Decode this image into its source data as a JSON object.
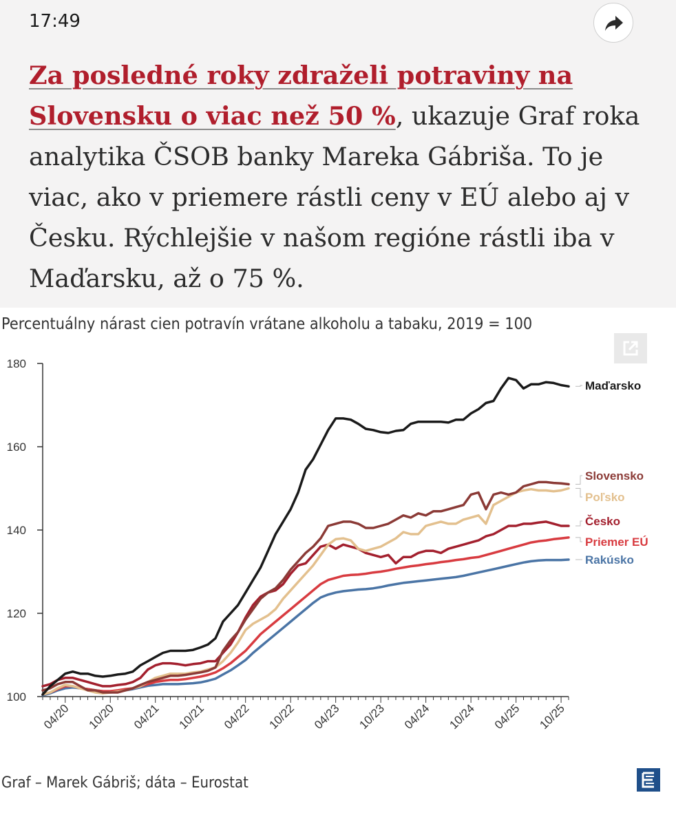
{
  "status": {
    "time": "17:49"
  },
  "article": {
    "link_text": "Za posledné roky zdraželi potraviny na Slovensku o viac než 50 %",
    "body_text": ", ukazuje Graf roka analytika ČSOB banky Mareka Gábriša. To je viac, ako v priemere rástli ceny v EÚ alebo aj v Česku. Rýchlejšie v našom regióne rástli iba v Maďarsku, až o 75 %."
  },
  "icons": {
    "share": "share-arrow-icon",
    "expand": "expand-icon",
    "logo": "e-logo-icon"
  },
  "chart_data": {
    "type": "line",
    "title": "Percentuálny nárast cien potravín vrátane alkoholu a tabaku, 2019 = 100",
    "source": "Graf – Marek Gábriš; dáta – Eurostat",
    "xlabel": "",
    "ylabel": "",
    "ylim": [
      100,
      180
    ],
    "yticks": [
      100,
      120,
      140,
      160,
      180
    ],
    "x_ticks": [
      "04/20",
      "10/20",
      "04/21",
      "10/21",
      "04/22",
      "10/22",
      "04/23",
      "10/23",
      "04/24",
      "10/24",
      "04/25",
      "10/25"
    ],
    "x": [
      "01/20",
      "02/20",
      "03/20",
      "04/20",
      "05/20",
      "06/20",
      "07/20",
      "08/20",
      "09/20",
      "10/20",
      "11/20",
      "12/20",
      "01/21",
      "02/21",
      "03/21",
      "04/21",
      "05/21",
      "06/21",
      "07/21",
      "08/21",
      "09/21",
      "10/21",
      "11/21",
      "12/21",
      "01/22",
      "02/22",
      "03/22",
      "04/22",
      "05/22",
      "06/22",
      "07/22",
      "08/22",
      "09/22",
      "10/22",
      "11/22",
      "12/22",
      "01/23",
      "02/23",
      "03/23",
      "04/23",
      "05/23",
      "06/23",
      "07/23",
      "08/23",
      "09/23",
      "10/23",
      "11/23",
      "12/23",
      "01/24",
      "02/24",
      "03/24",
      "04/24",
      "05/24",
      "06/24",
      "07/24",
      "08/24",
      "09/24",
      "10/24",
      "11/24",
      "12/24",
      "01/25",
      "02/25",
      "03/25",
      "04/25",
      "05/25",
      "06/25",
      "07/25",
      "08/25",
      "09/25",
      "10/25",
      "11/25"
    ],
    "grid": false,
    "legend": "labels at right end of lines",
    "series": [
      {
        "name": "Maďarsko",
        "color": "#1a1a1a",
        "values": [
          100.5,
          102.5,
          104.0,
          105.5,
          106.0,
          105.5,
          105.5,
          105.0,
          104.8,
          105.0,
          105.3,
          105.5,
          106.0,
          107.5,
          108.5,
          109.5,
          110.5,
          111.0,
          111.0,
          111.0,
          111.2,
          111.8,
          112.5,
          114.0,
          118.0,
          120.0,
          122.0,
          125.0,
          128.0,
          131.0,
          135.0,
          139.0,
          142.0,
          145.0,
          149.0,
          154.5,
          157.0,
          160.5,
          164.0,
          166.8,
          166.8,
          166.5,
          165.5,
          164.3,
          164.0,
          163.5,
          163.3,
          163.8,
          164.0,
          165.5,
          166.0,
          166.0,
          166.0,
          166.0,
          165.8,
          166.5,
          166.5,
          168.0,
          169.0,
          170.5,
          171.0,
          174.0,
          176.5,
          176.0,
          174.0,
          175.0,
          175.0,
          175.5,
          175.3,
          174.8,
          174.5
        ]
      },
      {
        "name": "Slovensko",
        "color": "#8b3a36",
        "values": [
          101.5,
          102.0,
          103.0,
          103.5,
          103.5,
          102.5,
          101.5,
          101.5,
          101.0,
          101.0,
          101.0,
          101.5,
          102.0,
          102.8,
          103.5,
          104.0,
          104.5,
          105.0,
          105.0,
          105.2,
          105.5,
          105.8,
          106.2,
          107.0,
          111.0,
          113.5,
          115.5,
          118.5,
          121.0,
          123.5,
          125.0,
          126.0,
          128.0,
          130.5,
          132.5,
          134.5,
          136.0,
          138.0,
          141.0,
          141.5,
          142.0,
          142.0,
          141.5,
          140.5,
          140.5,
          141.0,
          141.5,
          142.5,
          143.5,
          143.0,
          144.0,
          143.5,
          144.5,
          144.5,
          145.0,
          145.5,
          146.0,
          148.5,
          149.0,
          145.0,
          148.5,
          149.0,
          148.5,
          149.0,
          150.5,
          151.0,
          151.5,
          151.5,
          151.3,
          151.2,
          151.0
        ]
      },
      {
        "name": "Poľsko",
        "color": "#e3c08e",
        "values": [
          100.5,
          101.0,
          102.0,
          102.8,
          102.5,
          102.0,
          101.5,
          101.0,
          100.8,
          101.0,
          101.2,
          101.5,
          102.0,
          102.5,
          103.5,
          104.5,
          105.0,
          105.5,
          105.5,
          105.5,
          105.8,
          106.0,
          106.5,
          107.0,
          108.5,
          110.5,
          113.0,
          116.0,
          117.5,
          118.5,
          119.5,
          121.0,
          123.5,
          125.5,
          127.5,
          129.5,
          131.5,
          134.0,
          136.5,
          137.8,
          138.0,
          137.5,
          135.5,
          135.0,
          135.5,
          136.0,
          137.0,
          138.0,
          139.5,
          139.0,
          139.0,
          141.0,
          141.5,
          142.0,
          141.5,
          141.5,
          142.5,
          143.0,
          143.5,
          141.5,
          146.0,
          147.0,
          148.0,
          149.0,
          149.5,
          149.8,
          149.5,
          149.5,
          149.3,
          149.5,
          150.0
        ]
      },
      {
        "name": "Česko",
        "color": "#a3202e",
        "values": [
          102.5,
          103.0,
          104.0,
          104.5,
          104.5,
          104.0,
          103.5,
          103.0,
          102.5,
          102.5,
          102.8,
          103.0,
          103.5,
          104.5,
          106.5,
          107.5,
          108.0,
          108.0,
          107.8,
          107.5,
          107.8,
          108.0,
          108.5,
          108.5,
          110.5,
          112.5,
          115.5,
          119.0,
          122.0,
          124.0,
          125.0,
          125.5,
          127.0,
          129.5,
          131.5,
          132.0,
          134.0,
          136.0,
          136.5,
          135.5,
          136.5,
          136.0,
          135.5,
          134.5,
          134.0,
          133.5,
          134.0,
          132.0,
          133.5,
          133.5,
          134.5,
          135.0,
          135.0,
          134.5,
          135.5,
          136.0,
          136.5,
          137.0,
          137.5,
          138.5,
          139.0,
          140.0,
          141.0,
          141.0,
          141.5,
          141.5,
          141.8,
          142.0,
          141.5,
          141.0,
          141.0
        ]
      },
      {
        "name": "Priemer EÚ",
        "color": "#d83b40",
        "values": [
          100.5,
          101.0,
          101.8,
          102.5,
          102.5,
          102.0,
          101.8,
          101.5,
          101.3,
          101.3,
          101.5,
          101.8,
          102.0,
          102.5,
          103.0,
          103.5,
          103.8,
          104.0,
          104.0,
          104.2,
          104.5,
          104.8,
          105.2,
          105.8,
          106.8,
          108.0,
          109.5,
          111.0,
          113.0,
          115.0,
          116.5,
          118.0,
          119.5,
          121.0,
          122.5,
          124.0,
          125.5,
          127.0,
          128.0,
          128.5,
          129.0,
          129.2,
          129.3,
          129.5,
          129.8,
          130.0,
          130.3,
          130.7,
          131.0,
          131.3,
          131.5,
          131.8,
          132.0,
          132.3,
          132.5,
          132.8,
          133.0,
          133.3,
          133.5,
          134.0,
          134.5,
          135.0,
          135.5,
          136.0,
          136.5,
          137.0,
          137.3,
          137.5,
          137.8,
          138.0,
          138.2
        ]
      },
      {
        "name": "Rakúsko",
        "color": "#4a74a5",
        "values": [
          100.3,
          100.8,
          101.5,
          102.0,
          102.2,
          102.0,
          101.8,
          101.5,
          101.3,
          101.2,
          101.3,
          101.5,
          101.8,
          102.2,
          102.6,
          102.8,
          103.0,
          103.0,
          103.0,
          103.1,
          103.2,
          103.4,
          103.8,
          104.3,
          105.3,
          106.3,
          107.5,
          108.8,
          110.5,
          112.0,
          113.5,
          115.0,
          116.5,
          118.0,
          119.5,
          121.0,
          122.5,
          123.8,
          124.5,
          125.0,
          125.3,
          125.5,
          125.7,
          125.8,
          126.0,
          126.3,
          126.7,
          127.0,
          127.3,
          127.5,
          127.7,
          127.9,
          128.1,
          128.3,
          128.5,
          128.7,
          129.0,
          129.4,
          129.8,
          130.2,
          130.6,
          131.0,
          131.4,
          131.8,
          132.2,
          132.5,
          132.7,
          132.8,
          132.8,
          132.8,
          132.9
        ]
      }
    ]
  }
}
